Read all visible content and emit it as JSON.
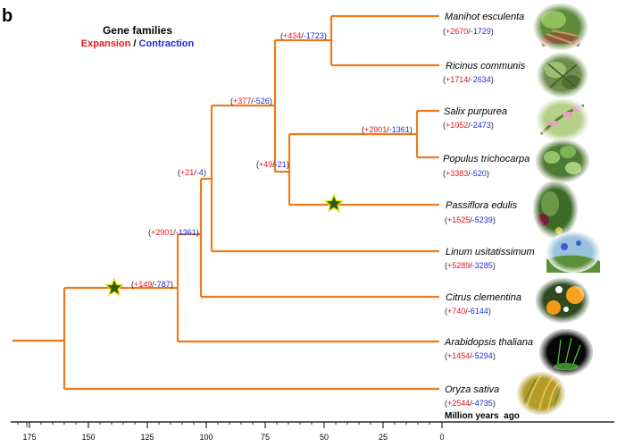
{
  "panel_label": "b",
  "legend": {
    "title": "Gene families",
    "expansion": "Expansion",
    "separator": " / ",
    "contraction": "Contraction",
    "expansion_color": "#e8141b",
    "contraction_color": "#1f2bd6"
  },
  "branch_color": "#f07a1a",
  "star_color": "#2e5d1a",
  "axis": {
    "title": "Million years  ago",
    "ticks": [
      "175",
      "150",
      "125",
      "100",
      "75",
      "50",
      "25",
      "0"
    ]
  },
  "species": [
    {
      "name": "Manihot esculenta",
      "expansion": "+2670",
      "contraction": "-1729",
      "photo": "cassava-photo"
    },
    {
      "name": "Ricinus communis",
      "expansion": "+1714",
      "contraction": "-2634",
      "photo": "castor-photo"
    },
    {
      "name": "Salix purpurea",
      "expansion": "+1052",
      "contraction": "-2473",
      "photo": "willow-photo"
    },
    {
      "name": "Populus trichocarpa",
      "expansion": "+3383",
      "contraction": "-520",
      "photo": "poplar-photo"
    },
    {
      "name": "Passiflora edulis",
      "expansion": "+1525",
      "contraction": "-5239",
      "photo": "passionfruit-photo"
    },
    {
      "name": "Linum usitatissimum",
      "expansion": "+5289",
      "contraction": "-3285",
      "photo": "flax-photo"
    },
    {
      "name": "Citrus clementina",
      "expansion": "+740",
      "contraction": "-6144",
      "photo": "citrus-photo"
    },
    {
      "name": "Arabidopsis thaliana",
      "expansion": "+1454",
      "contraction": "-5294",
      "photo": "arabidopsis-photo"
    },
    {
      "name": "Oryza sativa",
      "expansion": "+2544",
      "contraction": "-4735",
      "photo": "rice-photo"
    }
  ],
  "nodes": [
    {
      "id": "manihot-ricinus",
      "expansion": "+434",
      "contraction": "-1723"
    },
    {
      "id": "malpighiales",
      "expansion": "+377",
      "contraction": "-526"
    },
    {
      "id": "salix-populus",
      "expansion": "+2901",
      "contraction": "-1361"
    },
    {
      "id": "passiflora-salicaceae",
      "expansion": "+49",
      "contraction": "-21"
    },
    {
      "id": "linum-malpighiales",
      "expansion": "+21",
      "contraction": "-4"
    },
    {
      "id": "rosids",
      "expansion": "+2901",
      "contraction": "-1361"
    },
    {
      "id": "eudicots",
      "expansion": "+149",
      "contraction": "-787"
    }
  ]
}
